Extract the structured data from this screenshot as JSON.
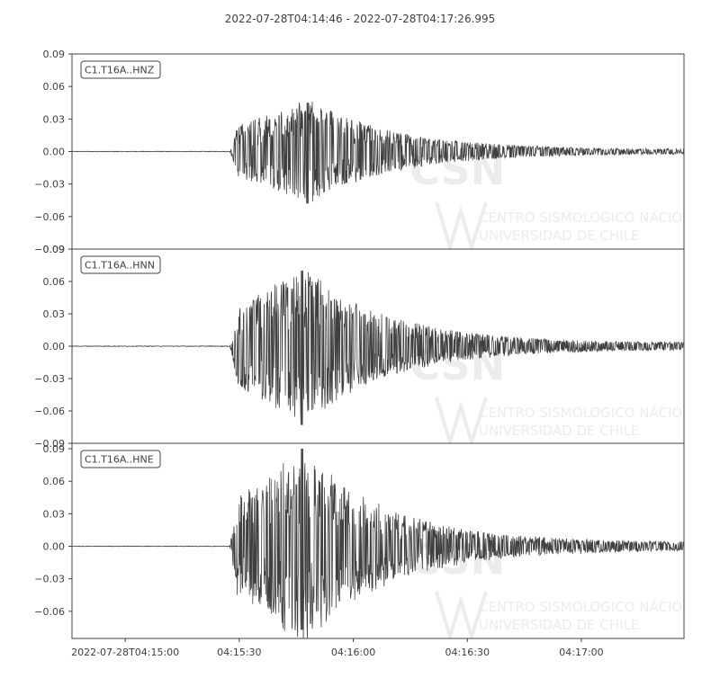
{
  "chart_data": {
    "type": "line",
    "title": "2022-07-28T04:14:46  -  2022-07-28T04:17:26.995",
    "colors": {
      "trace": "#404040",
      "axis": "#404040",
      "text": "#404040",
      "watermark": "#ececec"
    },
    "x_axis": {
      "start_seconds": 0,
      "end_seconds": 161,
      "tick_labels": [
        {
          "t": 14,
          "label": "2022-07-28T04:15:00"
        },
        {
          "t": 44,
          "label": "04:15:30"
        },
        {
          "t": 74,
          "label": "04:16:00"
        },
        {
          "t": 104,
          "label": "04:16:30"
        },
        {
          "t": 134,
          "label": "04:17:00"
        }
      ]
    },
    "panels": [
      {
        "label": "C1.T16A..HNZ",
        "ylim": [
          -0.09,
          0.09
        ],
        "y_ticks": [
          0.09,
          0.06,
          0.03,
          0.0,
          -0.03,
          -0.06,
          -0.09
        ],
        "y_tick_labels": [
          "0.09",
          "0.06",
          "0.03",
          "0.00",
          "−0.03",
          "−0.06",
          "−0.09"
        ],
        "onset_seconds": 41.5,
        "peak_seconds": 62,
        "peak_max": 0.045,
        "peak_min": -0.048
      },
      {
        "label": "C1.T16A..HNN",
        "ylim": [
          -0.09,
          0.09
        ],
        "y_ticks": [
          0.09,
          0.06,
          0.03,
          0.0,
          -0.03,
          -0.06,
          -0.09
        ],
        "y_tick_labels": [
          "0.09",
          "0.06",
          "0.03",
          "0.00",
          "−0.03",
          "−0.06",
          "−0.09"
        ],
        "onset_seconds": 41.5,
        "peak_seconds": 60.5,
        "peak_max": 0.07,
        "peak_min": -0.073
      },
      {
        "label": "C1.T16A..HNE",
        "ylim": [
          -0.085,
          0.095
        ],
        "y_ticks": [
          0.09,
          0.06,
          0.03,
          0.0,
          -0.03,
          -0.06
        ],
        "y_tick_labels": [
          "0.09",
          "0.06",
          "0.03",
          "0.00",
          "−0.03",
          "−0.06"
        ],
        "onset_seconds": 41.5,
        "peak_seconds": 60.5,
        "peak_max": 0.09,
        "peak_min": -0.077
      }
    ],
    "watermark": {
      "logo": "CSN",
      "lines": [
        "CENTRO SISMOLOGICO NACIONAL",
        "UNIVERSIDAD DE CHILE"
      ]
    }
  }
}
